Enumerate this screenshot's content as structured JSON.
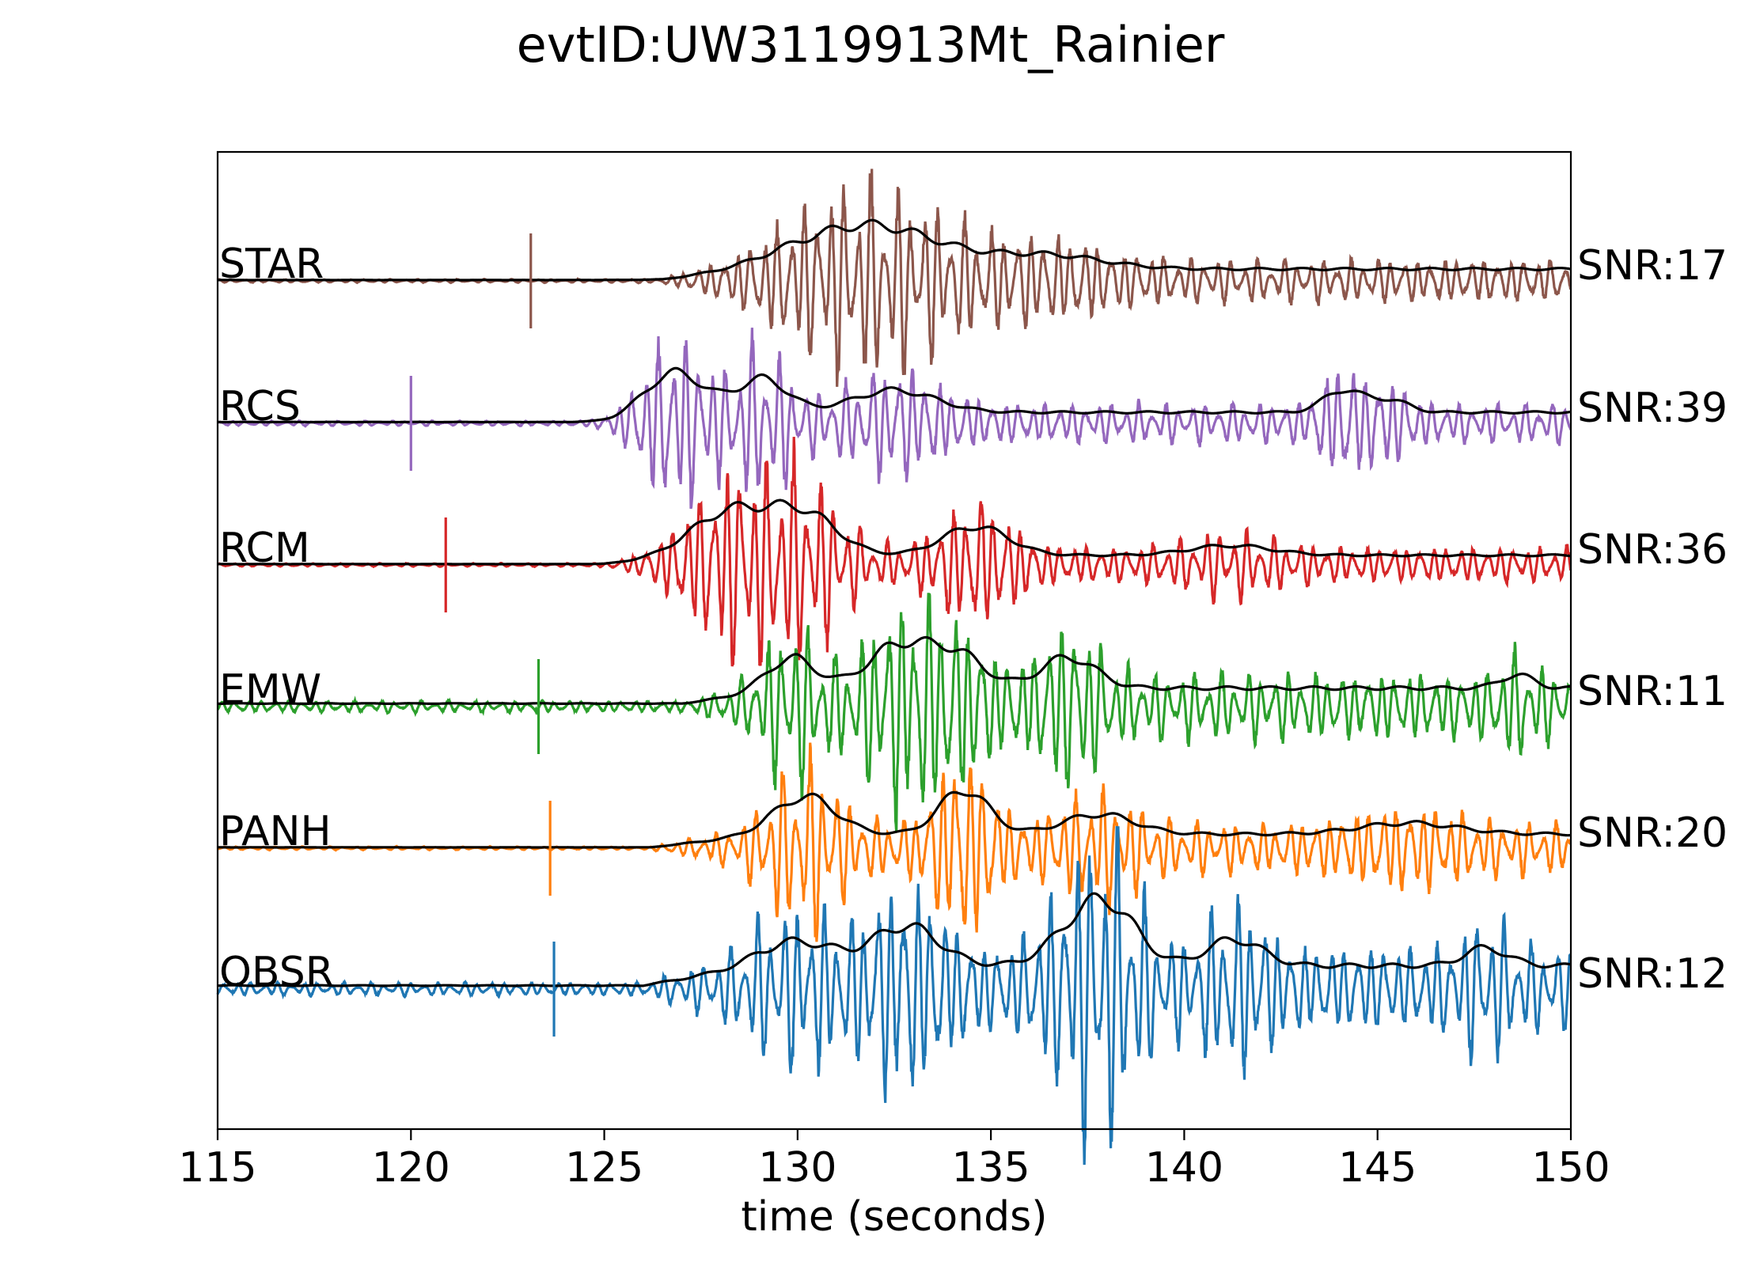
{
  "chart_data": {
    "type": "line",
    "title": "evtID:UW3119913Mt_Rainier",
    "xlabel": "time (seconds)",
    "ylabel": "",
    "xlim": [
      115,
      150
    ],
    "xticks": [
      115,
      120,
      125,
      130,
      135,
      140,
      145,
      150
    ],
    "grid": false,
    "envelope_color": "#000000",
    "series": [
      {
        "name": "STAR",
        "snr_label": "SNR:17",
        "color": "#8c564b",
        "pick_time": 123.1,
        "onset": 126.5,
        "end_amp": 0.25,
        "noise": 0.02,
        "bursts": [
          {
            "t": 131.8,
            "amp": 1.0,
            "width": 2.6
          },
          {
            "t": 136.5,
            "amp": 0.3,
            "width": 2.0
          }
        ]
      },
      {
        "name": "RCS",
        "snr_label": "SNR:39",
        "color": "#9467bd",
        "pick_time": 120.0,
        "onset": 125.2,
        "end_amp": 0.22,
        "noise": 0.03,
        "bursts": [
          {
            "t": 126.8,
            "amp": 1.0,
            "width": 1.1
          },
          {
            "t": 129.1,
            "amp": 0.75,
            "width": 0.9
          },
          {
            "t": 132.5,
            "amp": 0.5,
            "width": 1.5
          },
          {
            "t": 144.1,
            "amp": 0.5,
            "width": 0.7
          },
          {
            "t": 145.3,
            "amp": 0.28,
            "width": 0.7
          }
        ]
      },
      {
        "name": "RCM",
        "snr_label": "SNR:36",
        "color": "#d62728",
        "pick_time": 120.9,
        "onset": 125.0,
        "end_amp": 0.2,
        "noise": 0.02,
        "bursts": [
          {
            "t": 128.3,
            "amp": 1.0,
            "width": 1.5
          },
          {
            "t": 130.2,
            "amp": 0.85,
            "width": 1.2
          },
          {
            "t": 134.6,
            "amp": 0.65,
            "width": 1.2
          },
          {
            "t": 141.2,
            "amp": 0.22,
            "width": 1.5
          }
        ]
      },
      {
        "name": "EMW",
        "snr_label": "SNR:11",
        "color": "#2ca02c",
        "pick_time": 123.3,
        "onset": 127.0,
        "end_amp": 0.35,
        "noise": 0.07,
        "bursts": [
          {
            "t": 129.8,
            "amp": 0.7,
            "width": 0.9
          },
          {
            "t": 132.6,
            "amp": 0.95,
            "width": 1.1
          },
          {
            "t": 134.1,
            "amp": 0.75,
            "width": 1.0
          },
          {
            "t": 137.0,
            "amp": 0.7,
            "width": 1.0
          },
          {
            "t": 148.6,
            "amp": 0.3,
            "width": 0.6
          }
        ]
      },
      {
        "name": "PANH",
        "snr_label": "SNR:20",
        "color": "#ff7f0e",
        "pick_time": 123.6,
        "onset": 126.2,
        "end_amp": 0.3,
        "noise": 0.02,
        "bursts": [
          {
            "t": 130.2,
            "amp": 0.85,
            "width": 1.1
          },
          {
            "t": 134.3,
            "amp": 1.0,
            "width": 0.9
          },
          {
            "t": 137.8,
            "amp": 0.45,
            "width": 1.3
          },
          {
            "t": 145.8,
            "amp": 0.25,
            "width": 1.8
          }
        ]
      },
      {
        "name": "OBSR",
        "snr_label": "SNR:12",
        "color": "#1f77b4",
        "pick_time": 123.7,
        "onset": 126.0,
        "end_amp": 0.45,
        "noise": 0.08,
        "bursts": [
          {
            "t": 130.0,
            "amp": 0.55,
            "width": 1.3
          },
          {
            "t": 132.8,
            "amp": 0.9,
            "width": 1.2
          },
          {
            "t": 137.3,
            "amp": 0.85,
            "width": 1.1
          },
          {
            "t": 138.2,
            "amp": 0.95,
            "width": 1.0
          },
          {
            "t": 141.3,
            "amp": 0.6,
            "width": 1.0
          },
          {
            "t": 147.8,
            "amp": 0.4,
            "width": 0.8
          }
        ]
      }
    ]
  }
}
